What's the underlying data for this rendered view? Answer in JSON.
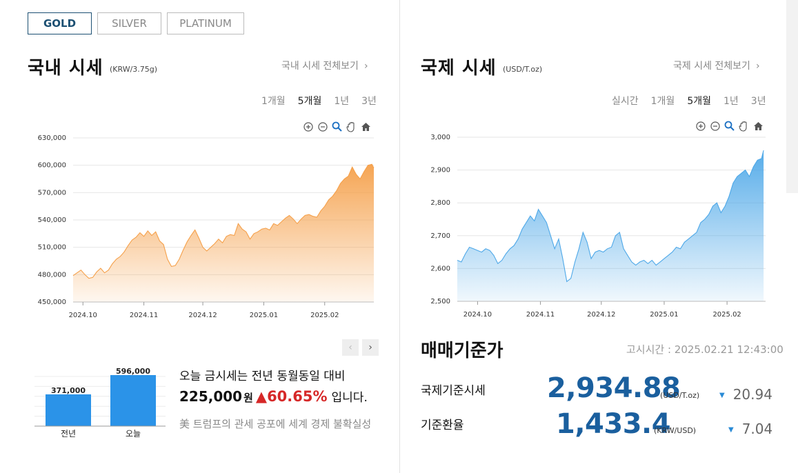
{
  "metal_tabs": [
    {
      "label": "GOLD"
    },
    {
      "label": "SILVER"
    },
    {
      "label": "PLATINUM"
    }
  ],
  "domestic": {
    "title": "국내 시세",
    "unit": "(KRW/3.75g)",
    "view_all": "국내 시세 전체보기",
    "ranges": [
      "1개월",
      "5개월",
      "1년",
      "3년"
    ],
    "active_range": "5개월",
    "chart_data": {
      "type": "area",
      "color": "#f5a04a",
      "yticks": [
        "630,000",
        "600,000",
        "570,000",
        "540,000",
        "510,000",
        "480,000",
        "450,000"
      ],
      "ylim": [
        450000,
        630000
      ],
      "xticks": [
        "2024.10",
        "2024.11",
        "2024.12",
        "2025.01",
        "2025.02"
      ],
      "x_days": [
        0,
        31,
        61,
        92,
        123
      ],
      "x_range_days": [
        -5,
        148
      ],
      "series": [
        {
          "values": [
            [
              -5,
              479000
            ],
            [
              -3,
              482000
            ],
            [
              -1,
              485000
            ],
            [
              1,
              480000
            ],
            [
              3,
              476000
            ],
            [
              5,
              477000
            ],
            [
              7,
              483000
            ],
            [
              9,
              487000
            ],
            [
              11,
              482000
            ],
            [
              13,
              485000
            ],
            [
              15,
              492000
            ],
            [
              17,
              497000
            ],
            [
              19,
              500000
            ],
            [
              21,
              505000
            ],
            [
              23,
              512000
            ],
            [
              25,
              518000
            ],
            [
              27,
              521000
            ],
            [
              29,
              526000
            ],
            [
              31,
              522000
            ],
            [
              33,
              528000
            ],
            [
              35,
              523000
            ],
            [
              37,
              527000
            ],
            [
              39,
              517000
            ],
            [
              41,
              513000
            ],
            [
              43,
              497000
            ],
            [
              45,
              489000
            ],
            [
              47,
              490000
            ],
            [
              49,
              497000
            ],
            [
              51,
              507000
            ],
            [
              53,
              516000
            ],
            [
              55,
              523000
            ],
            [
              57,
              529000
            ],
            [
              59,
              520000
            ],
            [
              61,
              510000
            ],
            [
              63,
              506000
            ],
            [
              65,
              510000
            ],
            [
              67,
              514000
            ],
            [
              69,
              519000
            ],
            [
              71,
              515000
            ],
            [
              73,
              522000
            ],
            [
              75,
              524000
            ],
            [
              77,
              523000
            ],
            [
              79,
              536000
            ],
            [
              81,
              530000
            ],
            [
              83,
              527000
            ],
            [
              85,
              519000
            ],
            [
              87,
              525000
            ],
            [
              89,
              527000
            ],
            [
              91,
              530000
            ],
            [
              93,
              531000
            ],
            [
              95,
              529000
            ],
            [
              97,
              536000
            ],
            [
              99,
              534000
            ],
            [
              101,
              538000
            ],
            [
              103,
              542000
            ],
            [
              105,
              545000
            ],
            [
              107,
              541000
            ],
            [
              109,
              536000
            ],
            [
              111,
              541000
            ],
            [
              113,
              545000
            ],
            [
              115,
              546000
            ],
            [
              117,
              544000
            ],
            [
              119,
              543000
            ],
            [
              121,
              550000
            ],
            [
              123,
              555000
            ],
            [
              125,
              562000
            ],
            [
              127,
              566000
            ],
            [
              129,
              572000
            ],
            [
              131,
              580000
            ],
            [
              133,
              585000
            ],
            [
              135,
              588000
            ],
            [
              137,
              598000
            ],
            [
              139,
              590000
            ],
            [
              141,
              585000
            ],
            [
              143,
              593000
            ],
            [
              145,
              600000
            ],
            [
              147,
              601000
            ],
            [
              148,
              597000
            ]
          ]
        }
      ]
    }
  },
  "international": {
    "title": "국제 시세",
    "unit": "(USD/T.oz)",
    "view_all": "국제 시세 전체보기",
    "ranges": [
      "실시간",
      "1개월",
      "5개월",
      "1년",
      "3년"
    ],
    "active_range": "5개월",
    "chart_data": {
      "type": "area",
      "color": "#4ea8e8",
      "yticks": [
        "3,000",
        "2,900",
        "2,800",
        "2,700",
        "2,600",
        "2,500"
      ],
      "ylim": [
        2500,
        3000
      ],
      "xticks": [
        "2024.10",
        "2024.11",
        "2024.12",
        "2025.01",
        "2025.02"
      ],
      "x_days": [
        0,
        31,
        61,
        92,
        123
      ],
      "x_range_days": [
        -10,
        142
      ],
      "series": [
        {
          "values": [
            [
              -10,
              2625
            ],
            [
              -8,
              2620
            ],
            [
              -6,
              2645
            ],
            [
              -4,
              2665
            ],
            [
              -2,
              2660
            ],
            [
              0,
              2655
            ],
            [
              2,
              2650
            ],
            [
              4,
              2660
            ],
            [
              6,
              2655
            ],
            [
              8,
              2640
            ],
            [
              10,
              2615
            ],
            [
              12,
              2625
            ],
            [
              14,
              2645
            ],
            [
              16,
              2660
            ],
            [
              18,
              2670
            ],
            [
              20,
              2690
            ],
            [
              22,
              2720
            ],
            [
              24,
              2740
            ],
            [
              26,
              2760
            ],
            [
              28,
              2745
            ],
            [
              30,
              2780
            ],
            [
              32,
              2760
            ],
            [
              34,
              2740
            ],
            [
              36,
              2700
            ],
            [
              38,
              2660
            ],
            [
              40,
              2690
            ],
            [
              42,
              2630
            ],
            [
              44,
              2560
            ],
            [
              46,
              2570
            ],
            [
              48,
              2620
            ],
            [
              50,
              2660
            ],
            [
              52,
              2710
            ],
            [
              54,
              2680
            ],
            [
              56,
              2630
            ],
            [
              58,
              2650
            ],
            [
              60,
              2655
            ],
            [
              62,
              2650
            ],
            [
              64,
              2660
            ],
            [
              66,
              2665
            ],
            [
              68,
              2700
            ],
            [
              70,
              2710
            ],
            [
              72,
              2660
            ],
            [
              74,
              2640
            ],
            [
              76,
              2620
            ],
            [
              78,
              2610
            ],
            [
              80,
              2620
            ],
            [
              82,
              2625
            ],
            [
              84,
              2615
            ],
            [
              86,
              2625
            ],
            [
              88,
              2610
            ],
            [
              90,
              2620
            ],
            [
              92,
              2630
            ],
            [
              94,
              2640
            ],
            [
              96,
              2650
            ],
            [
              98,
              2665
            ],
            [
              100,
              2660
            ],
            [
              102,
              2680
            ],
            [
              104,
              2690
            ],
            [
              106,
              2700
            ],
            [
              108,
              2710
            ],
            [
              110,
              2740
            ],
            [
              112,
              2750
            ],
            [
              114,
              2765
            ],
            [
              116,
              2790
            ],
            [
              118,
              2800
            ],
            [
              120,
              2770
            ],
            [
              122,
              2790
            ],
            [
              124,
              2820
            ],
            [
              126,
              2860
            ],
            [
              128,
              2880
            ],
            [
              130,
              2890
            ],
            [
              132,
              2900
            ],
            [
              134,
              2880
            ],
            [
              136,
              2910
            ],
            [
              138,
              2930
            ],
            [
              140,
              2935
            ],
            [
              141,
              2960
            ]
          ]
        }
      ]
    }
  },
  "comparison": {
    "chart_data": {
      "type": "bar",
      "categories": [
        "전년",
        "오늘"
      ],
      "values": [
        371000,
        596000
      ],
      "value_labels": [
        "371,000",
        "596,000"
      ],
      "color": "#2b93e8"
    },
    "line1": "오늘 금시세는 전년 동월동일 대비",
    "amount": "225,000",
    "won": "원",
    "arrow": "▲",
    "percent": "60.65%",
    "tail": "입니다.",
    "headline": "美 트럼프의 관세 공포에 세계 경제 불확실성"
  },
  "standard": {
    "title": "매매기준가",
    "notice": "고시시간 : 2025.02.21 12:43:00",
    "rows": [
      {
        "label": "국제기준시세",
        "value": "2,934.88",
        "unit": "(USD/T.oz)",
        "arrow": "▼",
        "change": "20.94"
      },
      {
        "label": "기준환율",
        "value": "1,433.4",
        "unit": "(KRW/USD)",
        "arrow": "▼",
        "change": "7.04"
      }
    ]
  },
  "pager": {
    "prev": "‹",
    "next": "›"
  },
  "icons": [
    "zoom-in-icon",
    "zoom-out-icon",
    "magnifier-icon",
    "pan-hand-icon",
    "home-icon"
  ]
}
